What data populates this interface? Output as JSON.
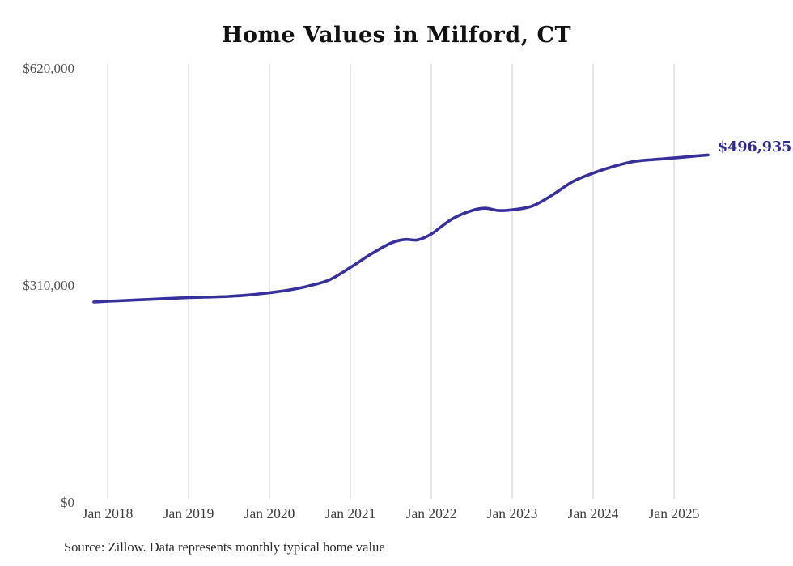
{
  "chart_data": {
    "type": "line",
    "title": "Home Values in Milford, CT",
    "source_note": "Source: Zillow. Data represents monthly typical home value",
    "end_label": "$496,935",
    "end_value": 496935,
    "xlabel": "",
    "ylabel": "",
    "xlim": [
      2017.78,
      2025.6
    ],
    "ylim": [
      0,
      620000
    ],
    "grid": "vertical-only",
    "legend": "none",
    "colors": {
      "line": "#37309c",
      "end_label": "#2e2a9a",
      "gridline": "#cdcdcd",
      "y_tick_text": "#4f4f4f",
      "x_tick_text": "#3f3f3f",
      "title_text": "#111111",
      "source_text": "#2b2b2b",
      "background": "#ffffff"
    },
    "y_ticks": [
      {
        "label": "$620,000",
        "value": 620000
      },
      {
        "label": "$310,000",
        "value": 310000
      },
      {
        "label": "$0",
        "value": 0
      }
    ],
    "x_ticks": [
      {
        "label": "Jan 2018",
        "year": 2018
      },
      {
        "label": "Jan 2019",
        "year": 2019
      },
      {
        "label": "Jan 2020",
        "year": 2020
      },
      {
        "label": "Jan 2021",
        "year": 2021
      },
      {
        "label": "Jan 2022",
        "year": 2022
      },
      {
        "label": "Jan 2023",
        "year": 2023
      },
      {
        "label": "Jan 2024",
        "year": 2024
      },
      {
        "label": "Jan 2025",
        "year": 2025
      }
    ],
    "series": [
      {
        "name": "Monthly typical home value",
        "points": [
          [
            2017.83,
            287000
          ],
          [
            2018.0,
            288000
          ],
          [
            2018.25,
            289300
          ],
          [
            2018.5,
            290600
          ],
          [
            2018.75,
            291900
          ],
          [
            2019.0,
            293200
          ],
          [
            2019.25,
            294000
          ],
          [
            2019.5,
            295000
          ],
          [
            2019.75,
            297000
          ],
          [
            2020.0,
            300200
          ],
          [
            2020.25,
            304200
          ],
          [
            2020.5,
            310200
          ],
          [
            2020.75,
            319000
          ],
          [
            2021.0,
            336200
          ],
          [
            2021.25,
            355000
          ],
          [
            2021.5,
            371000
          ],
          [
            2021.67,
            376200
          ],
          [
            2021.83,
            375600
          ],
          [
            2022.0,
            384000
          ],
          [
            2022.25,
            405000
          ],
          [
            2022.5,
            417500
          ],
          [
            2022.67,
            420800
          ],
          [
            2022.83,
            417600
          ],
          [
            2023.0,
            418600
          ],
          [
            2023.25,
            424000
          ],
          [
            2023.5,
            440000
          ],
          [
            2023.75,
            459000
          ],
          [
            2024.0,
            471000
          ],
          [
            2024.25,
            480500
          ],
          [
            2024.5,
            487500
          ],
          [
            2024.75,
            490500
          ],
          [
            2025.0,
            492600
          ],
          [
            2025.25,
            495300
          ],
          [
            2025.42,
            496935
          ]
        ]
      }
    ]
  }
}
